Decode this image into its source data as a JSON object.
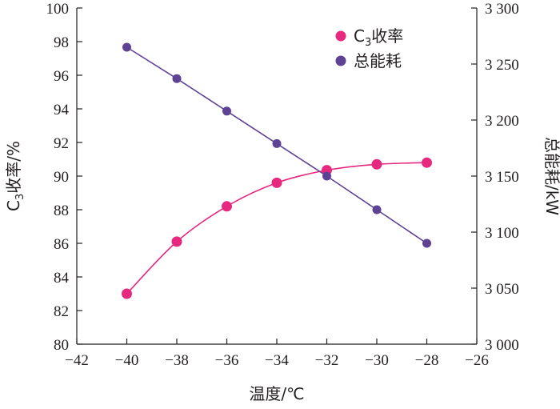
{
  "chart_data": {
    "type": "line",
    "xlabel": "温度/℃",
    "ylabel_left_main": "C",
    "ylabel_left_sub": "3",
    "ylabel_left_rest": "收率/%",
    "ylabel_right": "总能耗/kW",
    "xlim": [
      -42,
      -26
    ],
    "ylim_left": [
      80,
      100
    ],
    "ylim_right": [
      3000,
      3300
    ],
    "x_ticks": [
      -42,
      -40,
      -38,
      -36,
      -34,
      -32,
      -30,
      -28,
      -26
    ],
    "x_tick_labels": [
      "−42",
      "−40",
      "−38",
      "−36",
      "−34",
      "−32",
      "−30",
      "−28",
      "−26"
    ],
    "y_left_ticks": [
      80,
      82,
      84,
      86,
      88,
      90,
      92,
      94,
      96,
      98,
      100
    ],
    "y_left_tick_labels": [
      "80",
      "82",
      "84",
      "86",
      "88",
      "90",
      "92",
      "94",
      "96",
      "98",
      "100"
    ],
    "y_right_ticks": [
      3000,
      3050,
      3100,
      3150,
      3200,
      3250,
      3300
    ],
    "y_right_tick_labels": [
      "3 000",
      "3 050",
      "3 100",
      "3 150",
      "3 200",
      "3 250",
      "3 300"
    ],
    "legend_position": "top-right",
    "series": [
      {
        "name_main": "C",
        "name_sub": "3",
        "name_rest": "收率",
        "axis": "left",
        "color": "#e6287f",
        "smooth": true,
        "x": [
          -40,
          -38,
          -36,
          -34,
          -32,
          -30,
          -28
        ],
        "y": [
          83.0,
          86.1,
          88.2,
          89.6,
          90.35,
          90.7,
          90.8
        ]
      },
      {
        "name": "总能耗",
        "axis": "right",
        "color": "#5e4294",
        "smooth": false,
        "x": [
          -40,
          -38,
          -36,
          -34,
          -32,
          -30,
          -28
        ],
        "y": [
          3265,
          3237,
          3208,
          3179,
          3150,
          3120,
          3090
        ]
      }
    ]
  }
}
